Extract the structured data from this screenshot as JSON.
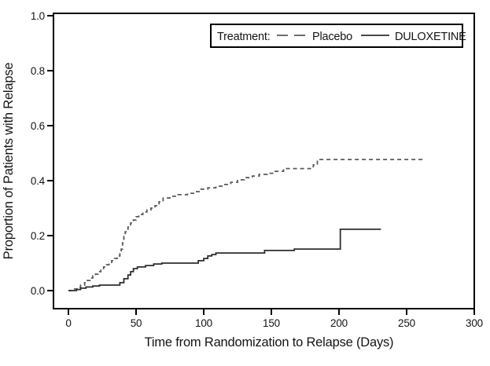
{
  "chart_data": {
    "type": "line",
    "subtype": "kaplan-meier-step",
    "title": "",
    "xlabel": "Time from Randomization to Relapse (Days)",
    "ylabel": "Proportion of Patients with Relapse",
    "xlim": [
      0,
      300
    ],
    "ylim": [
      0,
      1.0
    ],
    "x_ticks": [
      0,
      50,
      100,
      150,
      200,
      250,
      300
    ],
    "y_ticks": [
      0.0,
      0.2,
      0.4,
      0.6,
      0.8,
      1.0
    ],
    "grid": false,
    "background_color": "#ffffff",
    "axis_color": "#000000",
    "legend": {
      "position": "top-right",
      "title": "Treatment:",
      "entries": [
        {
          "label": "Placebo",
          "style": "dashed"
        },
        {
          "label": "DULOXETINE",
          "style": "solid"
        }
      ]
    },
    "series": [
      {
        "name": "Placebo",
        "style": "dashed",
        "color": "#5a5a5a",
        "end_x": 262,
        "points": [
          [
            0,
            0
          ],
          [
            4,
            0.006
          ],
          [
            7,
            0.011
          ],
          [
            9,
            0.02
          ],
          [
            12,
            0.029
          ],
          [
            14,
            0.037
          ],
          [
            16,
            0.046
          ],
          [
            18,
            0.054
          ],
          [
            20,
            0.06
          ],
          [
            22,
            0.069
          ],
          [
            24,
            0.077
          ],
          [
            26,
            0.086
          ],
          [
            28,
            0.094
          ],
          [
            30,
            0.1
          ],
          [
            32,
            0.109
          ],
          [
            34,
            0.117
          ],
          [
            36,
            0.126
          ],
          [
            38,
            0.134
          ],
          [
            39,
            0.151
          ],
          [
            40,
            0.174
          ],
          [
            41,
            0.197
          ],
          [
            42,
            0.214
          ],
          [
            44,
            0.231
          ],
          [
            46,
            0.246
          ],
          [
            48,
            0.257
          ],
          [
            50,
            0.269
          ],
          [
            52,
            0.277
          ],
          [
            55,
            0.286
          ],
          [
            58,
            0.293
          ],
          [
            61,
            0.3
          ],
          [
            64,
            0.309
          ],
          [
            67,
            0.323
          ],
          [
            70,
            0.337
          ],
          [
            75,
            0.343
          ],
          [
            81,
            0.349
          ],
          [
            88,
            0.354
          ],
          [
            94,
            0.36
          ],
          [
            98,
            0.369
          ],
          [
            103,
            0.374
          ],
          [
            109,
            0.38
          ],
          [
            115,
            0.386
          ],
          [
            120,
            0.394
          ],
          [
            125,
            0.403
          ],
          [
            130,
            0.411
          ],
          [
            136,
            0.417
          ],
          [
            141,
            0.423
          ],
          [
            147,
            0.427
          ],
          [
            152,
            0.434
          ],
          [
            159,
            0.444
          ],
          [
            181,
            0.457
          ],
          [
            184,
            0.477
          ]
        ]
      },
      {
        "name": "DULOXETINE",
        "style": "solid",
        "color": "#2e2e2e",
        "end_x": 231,
        "points": [
          [
            0,
            0
          ],
          [
            6,
            0.004
          ],
          [
            9,
            0.009
          ],
          [
            13,
            0.013
          ],
          [
            18,
            0.017
          ],
          [
            23,
            0.02
          ],
          [
            38,
            0.029
          ],
          [
            41,
            0.043
          ],
          [
            44,
            0.057
          ],
          [
            46,
            0.069
          ],
          [
            48,
            0.08
          ],
          [
            51,
            0.086
          ],
          [
            57,
            0.091
          ],
          [
            63,
            0.097
          ],
          [
            69,
            0.1
          ],
          [
            96,
            0.109
          ],
          [
            100,
            0.117
          ],
          [
            103,
            0.126
          ],
          [
            106,
            0.131
          ],
          [
            109,
            0.137
          ],
          [
            145,
            0.146
          ],
          [
            167,
            0.151
          ],
          [
            201,
            0.223
          ]
        ]
      }
    ]
  }
}
